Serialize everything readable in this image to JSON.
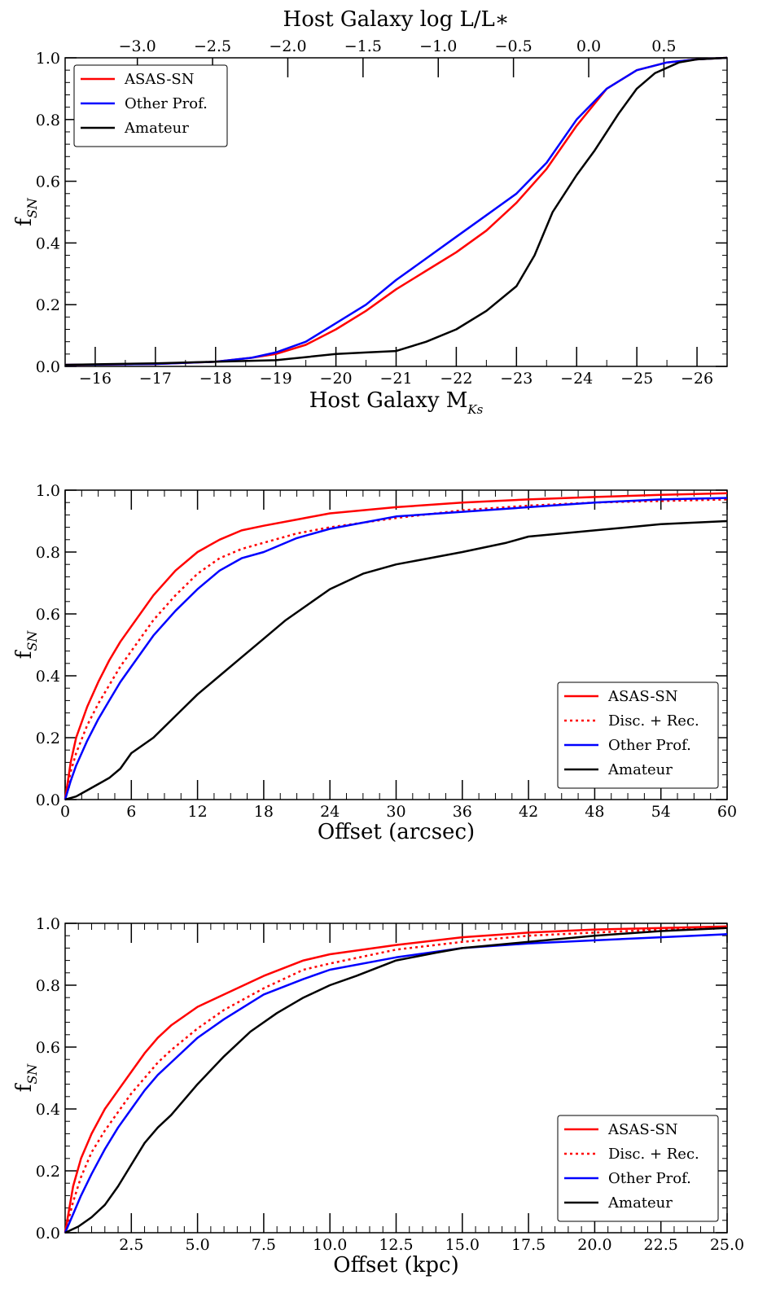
{
  "chart_data": [
    {
      "type": "line",
      "panel": "host-magnitude",
      "xlabel_main": "Host Galaxy M",
      "xlabel_sub": "Ks",
      "ylabel_main": "f",
      "ylabel_sub": "SN",
      "top_xlabel": "Host Galaxy log L/L∗",
      "xlim": [
        -15.5,
        -26.5
      ],
      "ylim": [
        0.0,
        1.0
      ],
      "x_ticks": [
        -16,
        -17,
        -18,
        -19,
        -20,
        -21,
        -22,
        -23,
        -24,
        -25,
        -26
      ],
      "x_tick_labels": [
        "−16",
        "−17",
        "−18",
        "−19",
        "−20",
        "−21",
        "−22",
        "−23",
        "−24",
        "−25",
        "−26"
      ],
      "top_x_ticks": [
        -3.0,
        -2.5,
        -2.0,
        -1.5,
        -1.0,
        -0.5,
        0.0,
        0.5
      ],
      "top_x_tick_labels": [
        "−3.0",
        "−2.5",
        "−2.0",
        "−1.5",
        "−1.0",
        "−0.5",
        "0.0",
        "0.5"
      ],
      "y_ticks": [
        0.0,
        0.2,
        0.4,
        0.6,
        0.8,
        1.0
      ],
      "y_tick_labels": [
        "0.0",
        "0.2",
        "0.4",
        "0.6",
        "0.8",
        "1.0"
      ],
      "legend_position": "top-left",
      "series": [
        {
          "name": "ASAS-SN",
          "color": "#ff0000",
          "dash": "solid",
          "x": [
            -15.5,
            -17.0,
            -18.0,
            -18.6,
            -19.0,
            -19.5,
            -20.0,
            -20.5,
            -21.0,
            -21.5,
            -22.0,
            -22.5,
            -23.0,
            -23.5,
            -24.0,
            -24.5,
            -25.0,
            -25.5,
            -26.0,
            -26.5
          ],
          "y": [
            0.005,
            0.008,
            0.015,
            0.028,
            0.04,
            0.07,
            0.12,
            0.18,
            0.25,
            0.31,
            0.37,
            0.44,
            0.53,
            0.64,
            0.78,
            0.9,
            0.96,
            0.985,
            0.995,
            1.0
          ]
        },
        {
          "name": "Other Prof.",
          "color": "#0000ff",
          "dash": "solid",
          "x": [
            -15.5,
            -17.0,
            -18.0,
            -18.6,
            -19.0,
            -19.5,
            -20.0,
            -20.5,
            -21.0,
            -21.5,
            -22.0,
            -22.5,
            -23.0,
            -23.5,
            -24.0,
            -24.5,
            -25.0,
            -25.5,
            -26.0,
            -26.5
          ],
          "y": [
            0.005,
            0.008,
            0.015,
            0.028,
            0.045,
            0.08,
            0.14,
            0.2,
            0.28,
            0.35,
            0.42,
            0.49,
            0.56,
            0.66,
            0.8,
            0.9,
            0.96,
            0.985,
            0.995,
            1.0
          ]
        },
        {
          "name": "Amateur",
          "color": "#000000",
          "dash": "solid",
          "x": [
            -15.5,
            -17.0,
            -18.0,
            -19.0,
            -20.0,
            -20.5,
            -21.0,
            -21.5,
            -22.0,
            -22.5,
            -23.0,
            -23.3,
            -23.6,
            -24.0,
            -24.3,
            -24.7,
            -25.0,
            -25.3,
            -25.7,
            -26.0,
            -26.5
          ],
          "y": [
            0.005,
            0.01,
            0.015,
            0.02,
            0.04,
            0.045,
            0.05,
            0.08,
            0.12,
            0.18,
            0.26,
            0.36,
            0.5,
            0.62,
            0.7,
            0.82,
            0.9,
            0.95,
            0.985,
            0.995,
            1.0
          ]
        }
      ]
    },
    {
      "type": "line",
      "panel": "offset-arcsec",
      "xlabel": "Offset (arcsec)",
      "ylabel_main": "f",
      "ylabel_sub": "SN",
      "xlim": [
        0,
        60
      ],
      "ylim": [
        0.0,
        1.0
      ],
      "x_ticks": [
        0,
        6,
        12,
        18,
        24,
        30,
        36,
        42,
        48,
        54,
        60
      ],
      "x_tick_labels": [
        "0",
        "6",
        "12",
        "18",
        "24",
        "30",
        "36",
        "42",
        "48",
        "54",
        "60"
      ],
      "y_ticks": [
        0.0,
        0.2,
        0.4,
        0.6,
        0.8,
        1.0
      ],
      "y_tick_labels": [
        "0.0",
        "0.2",
        "0.4",
        "0.6",
        "0.8",
        "1.0"
      ],
      "legend_position": "lower-right",
      "series": [
        {
          "name": "ASAS-SN",
          "color": "#ff0000",
          "dash": "solid",
          "x": [
            0,
            0.5,
            1,
            2,
            3,
            4,
            5,
            6,
            8,
            10,
            12,
            14,
            16,
            18,
            21,
            24,
            30,
            36,
            42,
            48,
            54,
            60
          ],
          "y": [
            0.0,
            0.12,
            0.2,
            0.3,
            0.38,
            0.45,
            0.51,
            0.56,
            0.66,
            0.74,
            0.8,
            0.84,
            0.87,
            0.885,
            0.905,
            0.925,
            0.945,
            0.96,
            0.97,
            0.978,
            0.985,
            0.99
          ]
        },
        {
          "name": "Disc. + Rec.",
          "color": "#ff0000",
          "dash": "dotted",
          "x": [
            0,
            0.5,
            1,
            2,
            3,
            4,
            5,
            6,
            8,
            10,
            12,
            14,
            16,
            18,
            21,
            24,
            30,
            36,
            42,
            48,
            54,
            60
          ],
          "y": [
            0.0,
            0.09,
            0.15,
            0.24,
            0.31,
            0.37,
            0.43,
            0.48,
            0.58,
            0.66,
            0.73,
            0.78,
            0.81,
            0.83,
            0.86,
            0.88,
            0.91,
            0.935,
            0.95,
            0.96,
            0.965,
            0.97
          ]
        },
        {
          "name": "Other Prof.",
          "color": "#0000ff",
          "dash": "solid",
          "x": [
            0,
            0.5,
            1,
            2,
            3,
            4,
            5,
            6,
            8,
            10,
            12,
            14,
            16,
            18,
            21,
            24,
            30,
            36,
            42,
            48,
            54,
            60
          ],
          "y": [
            0.0,
            0.06,
            0.11,
            0.19,
            0.26,
            0.32,
            0.38,
            0.43,
            0.53,
            0.61,
            0.68,
            0.74,
            0.78,
            0.8,
            0.845,
            0.875,
            0.915,
            0.93,
            0.945,
            0.96,
            0.97,
            0.975
          ]
        },
        {
          "name": "Amateur",
          "color": "#000000",
          "dash": "solid",
          "x": [
            0,
            1,
            2,
            3,
            4,
            5,
            6,
            8,
            10,
            12,
            14,
            16,
            18,
            20,
            22,
            24,
            27,
            30,
            33,
            36,
            40,
            42,
            48,
            54,
            60
          ],
          "y": [
            0.0,
            0.01,
            0.03,
            0.05,
            0.07,
            0.1,
            0.15,
            0.2,
            0.27,
            0.34,
            0.4,
            0.46,
            0.52,
            0.58,
            0.63,
            0.68,
            0.73,
            0.76,
            0.78,
            0.8,
            0.83,
            0.85,
            0.87,
            0.89,
            0.9
          ]
        }
      ]
    },
    {
      "type": "line",
      "panel": "offset-kpc",
      "xlabel": "Offset (kpc)",
      "ylabel_main": "f",
      "ylabel_sub": "SN",
      "xlim": [
        0,
        25
      ],
      "ylim": [
        0.0,
        1.0
      ],
      "x_ticks": [
        2.5,
        5.0,
        7.5,
        10.0,
        12.5,
        15.0,
        17.5,
        20.0,
        22.5,
        25.0
      ],
      "x_tick_labels": [
        "2.5",
        "5.0",
        "7.5",
        "10.0",
        "12.5",
        "15.0",
        "17.5",
        "20.0",
        "22.5",
        "25.0"
      ],
      "y_ticks": [
        0.0,
        0.2,
        0.4,
        0.6,
        0.8,
        1.0
      ],
      "y_tick_labels": [
        "0.0",
        "0.2",
        "0.4",
        "0.6",
        "0.8",
        "1.0"
      ],
      "legend_position": "lower-right",
      "series": [
        {
          "name": "ASAS-SN",
          "color": "#ff0000",
          "dash": "solid",
          "x": [
            0,
            0.3,
            0.6,
            1,
            1.5,
            2,
            2.5,
            3,
            3.5,
            4,
            5,
            6,
            7.5,
            9,
            10,
            12.5,
            15,
            17.5,
            20,
            22.5,
            25
          ],
          "y": [
            0.0,
            0.15,
            0.24,
            0.32,
            0.4,
            0.46,
            0.52,
            0.58,
            0.63,
            0.67,
            0.73,
            0.77,
            0.83,
            0.88,
            0.9,
            0.93,
            0.955,
            0.97,
            0.98,
            0.985,
            0.99
          ]
        },
        {
          "name": "Disc. + Rec.",
          "color": "#ff0000",
          "dash": "dotted",
          "x": [
            0,
            0.3,
            0.6,
            1,
            1.5,
            2,
            2.5,
            3,
            3.5,
            4,
            5,
            6,
            7.5,
            9,
            10,
            12.5,
            15,
            17.5,
            20,
            22.5,
            25
          ],
          "y": [
            0.0,
            0.1,
            0.18,
            0.26,
            0.33,
            0.39,
            0.45,
            0.5,
            0.55,
            0.59,
            0.66,
            0.72,
            0.79,
            0.85,
            0.87,
            0.915,
            0.94,
            0.96,
            0.97,
            0.98,
            0.985
          ]
        },
        {
          "name": "Other Prof.",
          "color": "#0000ff",
          "dash": "solid",
          "x": [
            0,
            0.3,
            0.6,
            1,
            1.5,
            2,
            2.5,
            3,
            3.5,
            4,
            5,
            6,
            7.5,
            9,
            10,
            12.5,
            15,
            17.5,
            20,
            22.5,
            25
          ],
          "y": [
            0.0,
            0.06,
            0.12,
            0.19,
            0.27,
            0.34,
            0.4,
            0.46,
            0.51,
            0.55,
            0.63,
            0.69,
            0.77,
            0.82,
            0.85,
            0.89,
            0.92,
            0.935,
            0.945,
            0.955,
            0.965
          ]
        },
        {
          "name": "Amateur",
          "color": "#000000",
          "dash": "solid",
          "x": [
            0,
            0.5,
            1,
            1.5,
            2,
            2.5,
            3,
            3.5,
            4,
            5,
            6,
            7,
            8,
            9,
            10,
            11,
            12.5,
            14,
            15,
            17.5,
            20,
            22.5,
            25
          ],
          "y": [
            0.0,
            0.02,
            0.05,
            0.09,
            0.15,
            0.22,
            0.29,
            0.34,
            0.38,
            0.48,
            0.57,
            0.65,
            0.71,
            0.76,
            0.8,
            0.83,
            0.88,
            0.905,
            0.92,
            0.94,
            0.96,
            0.975,
            0.985
          ]
        }
      ]
    }
  ]
}
